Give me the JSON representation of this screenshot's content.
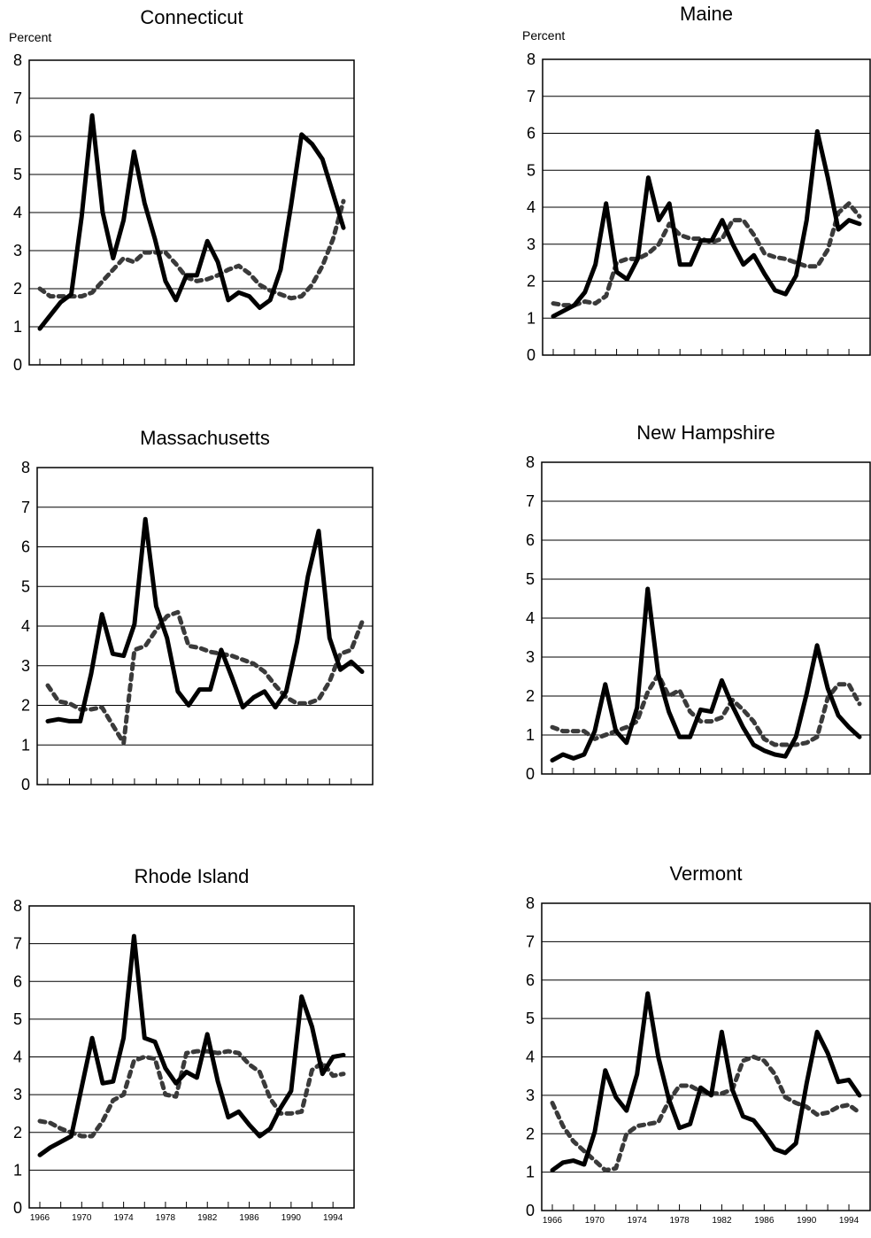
{
  "figure": {
    "x_years": [
      1966,
      1967,
      1968,
      1969,
      1970,
      1971,
      1972,
      1973,
      1974,
      1975,
      1976,
      1977,
      1978,
      1979,
      1980,
      1981,
      1982,
      1983,
      1984,
      1985,
      1986,
      1987,
      1988,
      1989,
      1990,
      1991,
      1992,
      1993,
      1994,
      1995
    ],
    "x_tick_labels": [
      "1966",
      "1970",
      "1974",
      "1978",
      "1982",
      "1986",
      "1990",
      "1994"
    ],
    "y_tick_labels": [
      "0",
      "1",
      "2",
      "3",
      "4",
      "5",
      "6",
      "7",
      "8"
    ],
    "colors": {
      "solid": "#000000",
      "dashed": "#3a3a3a",
      "grid": "#000000"
    }
  },
  "chart_data": [
    {
      "type": "line",
      "title": "Connecticut",
      "ylabel": "Percent",
      "ylim": [
        0,
        8
      ],
      "grid": true,
      "x_tick_labels_shown": false,
      "series": [
        {
          "style": "solid",
          "values": [
            0.95,
            1.3,
            1.65,
            1.85,
            3.9,
            6.55,
            4.0,
            2.8,
            3.8,
            5.6,
            4.25,
            3.3,
            2.2,
            1.7,
            2.35,
            2.35,
            3.25,
            2.7,
            1.7,
            1.9,
            1.8,
            1.5,
            1.7,
            2.5,
            4.2,
            6.05,
            5.8,
            5.4,
            4.5,
            3.6
          ]
        },
        {
          "style": "dashed",
          "values": [
            2.0,
            1.8,
            1.8,
            1.8,
            1.8,
            1.9,
            2.2,
            2.5,
            2.8,
            2.7,
            2.95,
            2.95,
            2.95,
            2.65,
            2.3,
            2.2,
            2.25,
            2.35,
            2.5,
            2.6,
            2.4,
            2.1,
            1.95,
            1.85,
            1.75,
            1.8,
            2.1,
            2.6,
            3.3,
            4.3
          ]
        }
      ]
    },
    {
      "type": "line",
      "title": "Maine",
      "ylabel": "Percent",
      "ylim": [
        0,
        8
      ],
      "grid": true,
      "x_tick_labels_shown": false,
      "series": [
        {
          "style": "solid",
          "values": [
            1.05,
            1.2,
            1.35,
            1.7,
            2.45,
            4.1,
            2.25,
            2.05,
            2.6,
            4.8,
            3.65,
            4.1,
            2.45,
            2.45,
            3.1,
            3.1,
            3.65,
            3.0,
            2.45,
            2.7,
            2.2,
            1.75,
            1.65,
            2.15,
            3.65,
            6.05,
            4.8,
            3.4,
            3.65,
            3.55
          ]
        },
        {
          "style": "dashed",
          "values": [
            1.4,
            1.35,
            1.35,
            1.45,
            1.4,
            1.6,
            2.5,
            2.6,
            2.6,
            2.75,
            3.0,
            3.55,
            3.25,
            3.15,
            3.15,
            3.05,
            3.15,
            3.65,
            3.65,
            3.25,
            2.75,
            2.65,
            2.6,
            2.5,
            2.4,
            2.4,
            2.85,
            3.85,
            4.1,
            3.75
          ]
        }
      ]
    },
    {
      "type": "line",
      "title": "Massachusetts",
      "ylabel": "",
      "ylim": [
        0,
        8
      ],
      "grid": true,
      "x_tick_labels_shown": false,
      "series": [
        {
          "style": "solid",
          "values": [
            1.6,
            1.65,
            1.6,
            1.6,
            2.8,
            4.3,
            3.3,
            3.25,
            4.05,
            6.7,
            4.5,
            3.7,
            2.35,
            2.0,
            2.4,
            2.4,
            3.4,
            2.7,
            1.95,
            2.2,
            2.35,
            1.95,
            2.35,
            3.6,
            5.25,
            6.4,
            3.7,
            2.9,
            3.1,
            2.85
          ]
        },
        {
          "style": "dashed",
          "values": [
            2.5,
            2.1,
            2.05,
            1.9,
            1.9,
            1.95,
            1.5,
            1.05,
            3.4,
            3.5,
            3.9,
            4.25,
            4.35,
            3.5,
            3.45,
            3.35,
            3.3,
            3.25,
            3.15,
            3.05,
            2.85,
            2.5,
            2.2,
            2.05,
            2.05,
            2.15,
            2.6,
            3.3,
            3.4,
            4.1
          ]
        }
      ]
    },
    {
      "type": "line",
      "title": "New Hampshire",
      "ylabel": "",
      "ylim": [
        0,
        8
      ],
      "grid": true,
      "x_tick_labels_shown": false,
      "series": [
        {
          "style": "solid",
          "values": [
            0.35,
            0.5,
            0.4,
            0.5,
            1.1,
            2.3,
            1.1,
            0.8,
            1.7,
            4.75,
            2.55,
            1.6,
            0.95,
            0.95,
            1.65,
            1.6,
            2.4,
            1.75,
            1.2,
            0.75,
            0.6,
            0.5,
            0.45,
            0.95,
            2.05,
            3.3,
            2.2,
            1.5,
            1.2,
            0.95
          ]
        },
        {
          "style": "dashed",
          "values": [
            1.2,
            1.1,
            1.1,
            1.1,
            0.9,
            1.0,
            1.1,
            1.2,
            1.35,
            2.1,
            2.55,
            2.0,
            2.15,
            1.6,
            1.35,
            1.35,
            1.45,
            1.9,
            1.65,
            1.35,
            0.9,
            0.75,
            0.75,
            0.75,
            0.8,
            0.95,
            1.95,
            2.3,
            2.3,
            1.8
          ]
        }
      ]
    },
    {
      "type": "line",
      "title": "Rhode Island",
      "ylabel": "",
      "ylim": [
        0,
        8
      ],
      "grid": true,
      "x_tick_labels_shown": true,
      "series": [
        {
          "style": "solid",
          "values": [
            1.4,
            1.6,
            1.75,
            1.9,
            3.2,
            4.5,
            3.3,
            3.35,
            4.5,
            7.2,
            4.5,
            4.4,
            3.7,
            3.3,
            3.6,
            3.45,
            4.6,
            3.35,
            2.4,
            2.55,
            2.2,
            1.9,
            2.1,
            2.65,
            3.1,
            5.6,
            4.8,
            3.55,
            4.0,
            4.05
          ]
        },
        {
          "style": "dashed",
          "values": [
            2.3,
            2.25,
            2.1,
            2.0,
            1.9,
            1.9,
            2.3,
            2.85,
            3.0,
            3.9,
            4.0,
            3.95,
            3.0,
            2.95,
            4.1,
            4.15,
            4.15,
            4.1,
            4.15,
            4.1,
            3.8,
            3.6,
            2.9,
            2.5,
            2.5,
            2.55,
            3.65,
            3.85,
            3.5,
            3.55
          ]
        }
      ]
    },
    {
      "type": "line",
      "title": "Vermont",
      "ylabel": "",
      "ylim": [
        0,
        8
      ],
      "grid": true,
      "x_tick_labels_shown": true,
      "series": [
        {
          "style": "solid",
          "values": [
            1.05,
            1.25,
            1.3,
            1.2,
            2.05,
            3.65,
            2.95,
            2.6,
            3.55,
            5.65,
            4.0,
            2.9,
            2.15,
            2.25,
            3.2,
            3.0,
            4.65,
            3.15,
            2.45,
            2.35,
            2.0,
            1.6,
            1.5,
            1.75,
            3.3,
            4.65,
            4.1,
            3.35,
            3.4,
            3.0
          ]
        },
        {
          "style": "dashed",
          "values": [
            2.8,
            2.2,
            1.8,
            1.55,
            1.3,
            1.05,
            1.1,
            2.0,
            2.2,
            2.25,
            2.3,
            2.85,
            3.25,
            3.25,
            3.1,
            3.05,
            3.05,
            3.15,
            3.9,
            4.0,
            3.9,
            3.55,
            2.95,
            2.8,
            2.7,
            2.5,
            2.55,
            2.7,
            2.75,
            2.55
          ]
        }
      ]
    }
  ]
}
